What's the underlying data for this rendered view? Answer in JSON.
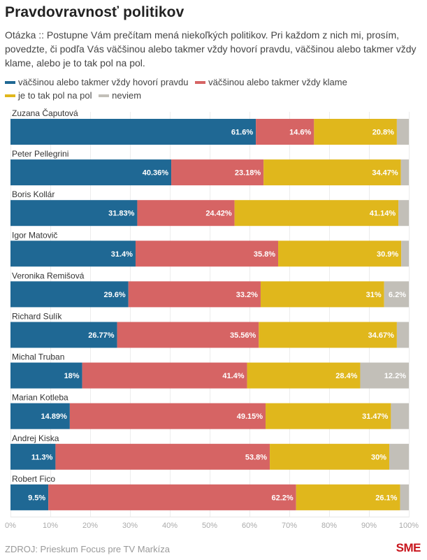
{
  "header": {
    "title": "Pravdovravnosť politikov",
    "subtitle": "Otázka :: Postupne Vám prečítam mená niekoľkých politikov. Pri každom z nich mi, prosím, povedzte, či podľa Vás väčšinou alebo takmer vždy hovorí pravdu, väčšinou alebo takmer vždy klame, alebo je to tak pol na pol."
  },
  "footer": {
    "source": "ZDROJ: Prieskum Focus pre TV Markíza",
    "logo": "SME"
  },
  "chart_data": {
    "type": "bar",
    "orientation": "horizontal",
    "stacked": true,
    "title": "Pravdovravnosť politikov",
    "xlabel": "",
    "ylabel": "",
    "xlim": [
      0,
      100
    ],
    "grid": true,
    "legend_position": "top-left",
    "x_ticks": [
      "0%",
      "10%",
      "20%",
      "30%",
      "40%",
      "50%",
      "60%",
      "70%",
      "80%",
      "90%",
      "100%"
    ],
    "categories": [
      "Zuzana Čaputová",
      "Peter Pellegrini",
      "Boris Kollár",
      "Igor Matovič",
      "Veronika Remišová",
      "Richard Sulík",
      "Michal Truban",
      "Marian Kotleba",
      "Andrej Kiska",
      "Robert Fico"
    ],
    "series": [
      {
        "name": "väčšinou alebo takmer vždy hovorí pravdu",
        "color": "#1f6894",
        "values": [
          61.6,
          40.36,
          31.83,
          31.4,
          29.6,
          26.77,
          18,
          14.89,
          11.3,
          9.5
        ],
        "labels": [
          "61.6%",
          "40.36%",
          "31.83%",
          "31.4%",
          "29.6%",
          "26.77%",
          "18%",
          "14.89%",
          "11.3%",
          "9.5%"
        ]
      },
      {
        "name": "väčšinou alebo takmer vždy klame",
        "color": "#d66464",
        "values": [
          14.6,
          23.18,
          24.42,
          35.8,
          33.2,
          35.56,
          41.4,
          49.15,
          53.8,
          62.2
        ],
        "labels": [
          "14.6%",
          "23.18%",
          "24.42%",
          "35.8%",
          "33.2%",
          "35.56%",
          "41.4%",
          "49.15%",
          "53.8%",
          "62.2%"
        ]
      },
      {
        "name": "je to tak pol na pol",
        "color": "#e0b71c",
        "values": [
          20.8,
          34.47,
          41.14,
          30.9,
          31,
          34.67,
          28.4,
          31.47,
          30,
          26.1
        ],
        "labels": [
          "20.8%",
          "34.47%",
          "41.14%",
          "30.9%",
          "31%",
          "34.67%",
          "28.4%",
          "31.47%",
          "30%",
          "26.1%"
        ]
      },
      {
        "name": "neviem",
        "color": "#c2bfb8",
        "values": [
          3.0,
          1.99,
          2.61,
          1.9,
          6.2,
          3.0,
          12.2,
          4.49,
          4.9,
          2.2
        ],
        "labels": [
          "",
          "",
          "",
          "",
          "6.2%",
          "",
          "12.2%",
          "",
          "",
          ""
        ]
      }
    ]
  }
}
